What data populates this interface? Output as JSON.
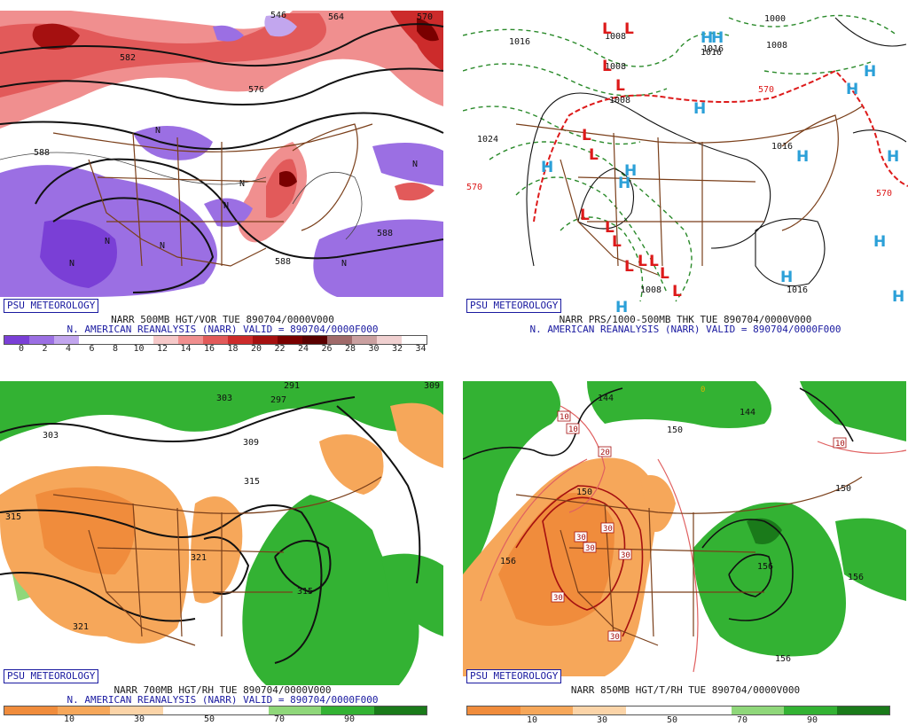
{
  "credit": "PSU METEOROLOGY",
  "dataset_title": "N. AMERICAN REANALYSIS (NARR) VALID = 890704/0000F000",
  "colors": {
    "vor": [
      "#7a3fd6",
      "#9b6fe3",
      "#c2a6ee",
      "#ffffff",
      "#ffffff",
      "#ffffff",
      "#f6c9c9",
      "#f08f8f",
      "#e25a5a",
      "#cc2b2b",
      "#a51010",
      "#7a0000",
      "#5a0000",
      "#a06a6a",
      "#caa0a0",
      "#f0d0d0",
      "#ffffff"
    ],
    "rh": [
      "#f08c3c",
      "#f6a75a",
      "#fbd4a8",
      "#ffffff",
      "#ffffff",
      "#8fd77a",
      "#33b233",
      "#1a7a1a"
    ],
    "border": "#7a3f1a",
    "contour": "#111111"
  },
  "panels": [
    {
      "id": "vor500",
      "title": "NARR 500MB HGT/VOR TUE 890704/0000V000",
      "legend_ticks": [
        "0",
        "2",
        "4",
        "6",
        "8",
        "10",
        "12",
        "14",
        "16",
        "18",
        "20",
        "22",
        "24",
        "26",
        "28",
        "30",
        "32",
        "34"
      ],
      "labels": [
        "582",
        "588",
        "588",
        "588",
        "546",
        "564",
        "570",
        "576",
        "N",
        "N",
        "N",
        "N",
        "N",
        "N",
        "N",
        "N"
      ]
    },
    {
      "id": "prs1000",
      "title": "NARR PRS/1000-500MB THK TUE 890704/0000V000",
      "labels": [
        "1016",
        "1008",
        "1008",
        "1008",
        "1016",
        "1000",
        "1008",
        "1024",
        "1016",
        "1016",
        "1008",
        "1016",
        "570",
        "570",
        "570"
      ],
      "lows": [
        "L",
        "L",
        "L",
        "L",
        "L",
        "L",
        "L",
        "L",
        "L",
        "L",
        "L",
        "L",
        "L",
        "L"
      ],
      "highs": [
        "H",
        "H",
        "H",
        "H",
        "H",
        "H",
        "H",
        "H",
        "H",
        "H",
        "H",
        "H",
        "H",
        "H"
      ]
    },
    {
      "id": "rh700",
      "title": "NARR 700MB HGT/RH TUE 890704/0000V000",
      "legend_ticks": [
        "10",
        "30",
        "50",
        "70",
        "90"
      ],
      "labels": [
        "303",
        "303",
        "309",
        "315",
        "315",
        "321",
        "321",
        "315",
        "297",
        "291",
        "309"
      ]
    },
    {
      "id": "rh850",
      "title": "NARR 850MB HGT/T/RH TUE 890704/0000V000",
      "legend_ticks": [
        "10",
        "30",
        "50",
        "70",
        "90"
      ],
      "labels": [
        "144",
        "144",
        "150",
        "150",
        "156",
        "156",
        "156",
        "156",
        "150"
      ],
      "temp_labels": [
        "10",
        "10",
        "10",
        "20",
        "30",
        "30",
        "30",
        "30",
        "30",
        "30",
        "0"
      ]
    }
  ]
}
